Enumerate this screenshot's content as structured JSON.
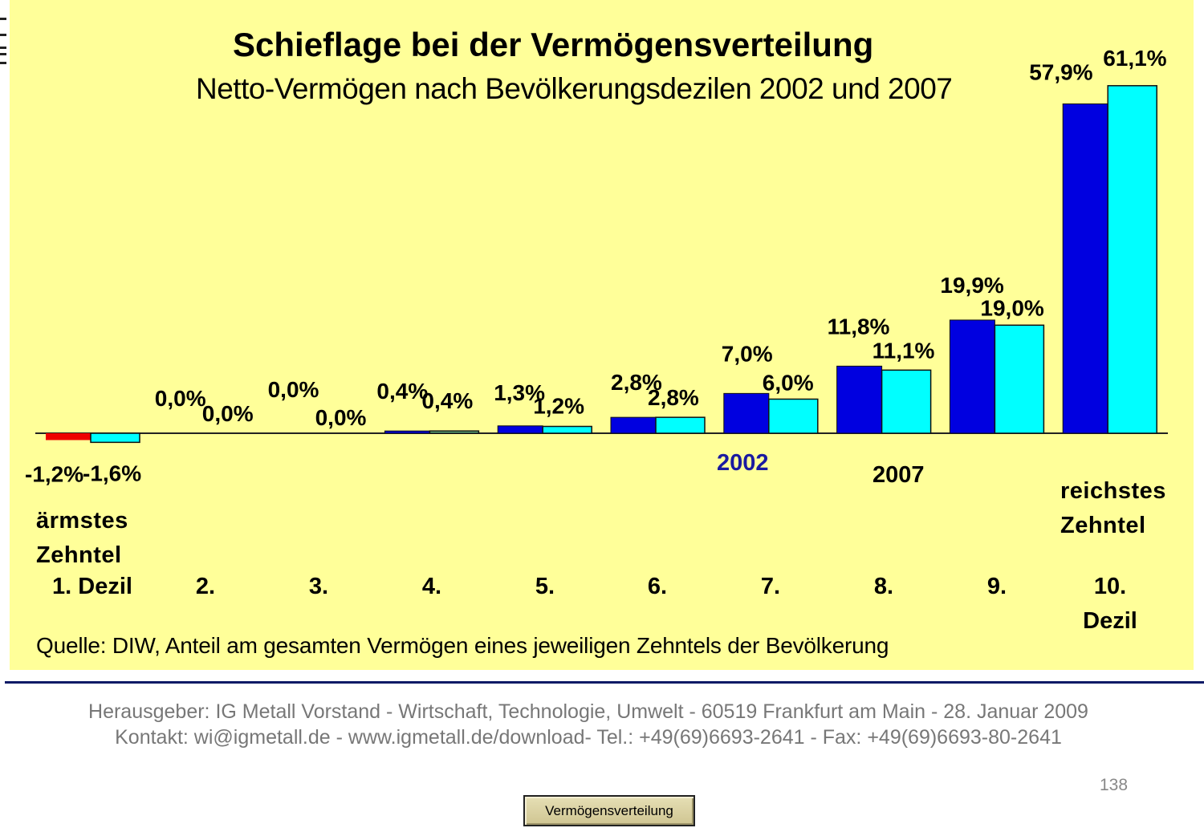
{
  "slide": {
    "title": "Schieflage bei der Vermögensverteilung",
    "subtitle": "Netto-Vermögen nach Bevölkerungsdezilen 2002 und 2007",
    "poorest_note": [
      "ärmstes",
      "Zehntel"
    ],
    "richest_note": [
      "reichstes",
      "Zehntel"
    ],
    "source": "Quelle: DIW, Anteil am gesamten Vermögen eines jeweiligen Zehntels der Bevölkerung",
    "footer_line1": "Herausgeber: IG Metall Vorstand - Wirtschaft, Technologie, Umwelt - 60519 Frankfurt am Main - 28. Januar 2009",
    "footer_line2": "Kontakt: wi@igmetall.de - www.igmetall.de/download- Tel.: +49(69)6693-2641 - Fax: +49(69)6693-80-2641",
    "page_number": "138",
    "nav_button_label": "Vermögensverteilung"
  },
  "colors": {
    "background": "#ffff99",
    "series_2002": "#0000e0",
    "series_2007": "#00ffff",
    "negative_2002": "#ee0000",
    "small_2007": "#66bb88",
    "legend_2002_text": "#1a1aa0",
    "rule": "#0d1a66"
  },
  "chart_data": {
    "type": "bar",
    "title": "Schieflage bei der Vermögensverteilung",
    "subtitle": "Netto-Vermögen nach Bevölkerungsdezilen 2002 und 2007",
    "xlabel": "",
    "ylabel": "",
    "categories": [
      "1. Dezil",
      "2.",
      "3.",
      "4.",
      "5.",
      "6.",
      "7.",
      "8.",
      "9.",
      "10. Dezil"
    ],
    "category_lines": [
      [
        "1. Dezil"
      ],
      [
        "2."
      ],
      [
        "3."
      ],
      [
        "4."
      ],
      [
        "5."
      ],
      [
        "6."
      ],
      [
        "7."
      ],
      [
        "8."
      ],
      [
        "9."
      ],
      [
        "10.",
        "Dezil"
      ]
    ],
    "series": [
      {
        "name": "2002",
        "values": [
          -1.2,
          0.0,
          0.0,
          0.4,
          1.3,
          2.8,
          7.0,
          11.8,
          19.9,
          57.9
        ],
        "labels": [
          "-1,2%",
          "0,0%",
          "0,0%",
          "0,4%",
          "1,3%",
          "2,8%",
          "7,0%",
          "11,8%",
          "19,9%",
          "57,9%"
        ]
      },
      {
        "name": "2007",
        "values": [
          -1.6,
          0.0,
          0.0,
          0.4,
          1.2,
          2.8,
          6.0,
          11.1,
          19.0,
          61.1
        ],
        "labels": [
          "-1,6%",
          "0,0%",
          "0,0%",
          "0,4%",
          "1,2%",
          "2,8%",
          "6,0%",
          "11,1%",
          "19,0%",
          "61,1%"
        ]
      }
    ],
    "ylim": [
      -1.6,
      61.1
    ],
    "grid": false,
    "y_axis_visible": false,
    "legend": "inline labels below bars (2002 center, 2007 right of center)"
  }
}
